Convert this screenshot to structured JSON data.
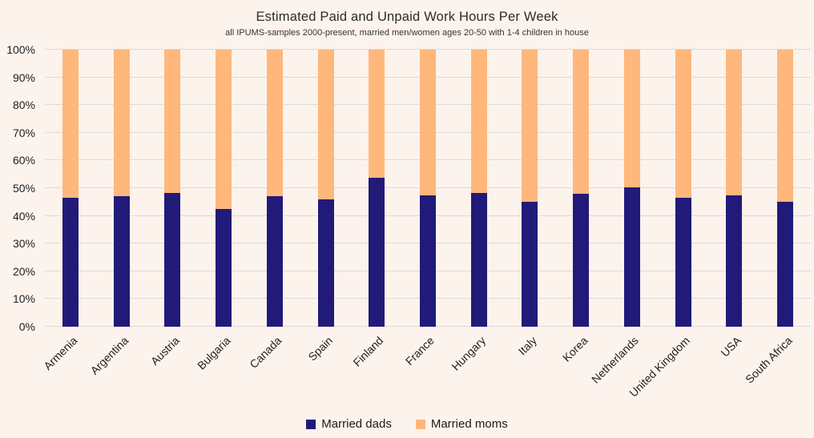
{
  "page": {
    "background": "#fdf3ed"
  },
  "header": {
    "title": "Estimated Paid and Unpaid Work Hours Per Week",
    "subtitle": "all IPUMS-samples 2000-present, married men/women ages 20-50 with 1-4 children in house"
  },
  "chart_data": {
    "type": "bar",
    "stacked": true,
    "stacked_total": 100,
    "title": "Estimated Paid and Unpaid Work Hours Per Week",
    "subtitle": "all IPUMS-samples 2000-present, married men/women ages 20-50 with 1-4 children in house",
    "categories": [
      "Armenia",
      "Argentina",
      "Austria",
      "Bulgaria",
      "Canada",
      "Spain",
      "Finland",
      "France",
      "Hungary",
      "Italy",
      "Korea",
      "Netherlands",
      "United Kingdom",
      "USA",
      "South Africa"
    ],
    "series": [
      {
        "name": "Married dads",
        "color": "#221a79",
        "values": [
          46.5,
          47.2,
          48.3,
          42.4,
          47.2,
          45.9,
          53.9,
          47.3,
          48.2,
          45.1,
          47.9,
          50.3,
          46.6,
          47.3,
          45.2
        ]
      },
      {
        "name": "Married moms",
        "color": "#ffb77c",
        "values": [
          53.5,
          52.8,
          51.7,
          57.6,
          52.8,
          54.1,
          46.1,
          52.7,
          51.8,
          54.9,
          52.1,
          49.7,
          53.4,
          52.7,
          54.8
        ]
      }
    ],
    "xlabel": "",
    "ylabel": "",
    "ylim": [
      0,
      100
    ],
    "ytick_step": 10,
    "yticks": [
      "0%",
      "10%",
      "20%",
      "30%",
      "40%",
      "50%",
      "60%",
      "70%",
      "80%",
      "90%",
      "100%"
    ],
    "grid": "horizontal",
    "gridline_color": "#dedad6",
    "legend_position": "bottom",
    "legend": [
      "Married dads",
      "Married moms"
    ]
  },
  "colors": {
    "background": "#fdf3ed",
    "gridline": "#dedad6",
    "text": "#212121",
    "married_dads": "#221a79",
    "married_moms": "#ffb77c"
  }
}
